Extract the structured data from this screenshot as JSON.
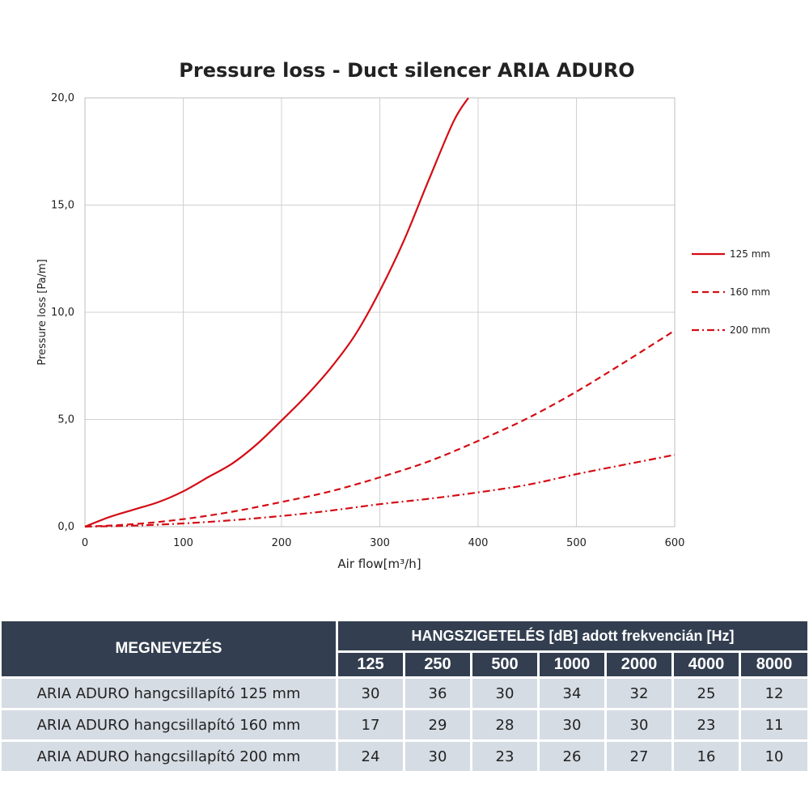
{
  "chart_data": {
    "type": "line",
    "title": "Pressure loss - Duct silencer ARIA ADURO",
    "xlabel": "Air flow[m³/h]",
    "ylabel": "Pressure loss [Pa/m]",
    "xlim": [
      0,
      600
    ],
    "ylim": [
      0,
      20
    ],
    "x_ticks": [
      "0",
      "100",
      "200",
      "300",
      "400",
      "500",
      "600"
    ],
    "y_ticks": [
      "0,0",
      "5,0",
      "10,0",
      "15,0",
      "20,0"
    ],
    "grid": true,
    "legend_position": "right",
    "series": [
      {
        "name": "125 mm",
        "style": "solid",
        "color": "#d40c14",
        "points": [
          [
            0,
            0
          ],
          [
            25,
            0.45
          ],
          [
            50,
            0.8
          ],
          [
            75,
            1.15
          ],
          [
            100,
            1.65
          ],
          [
            125,
            2.3
          ],
          [
            150,
            2.95
          ],
          [
            175,
            3.85
          ],
          [
            200,
            4.95
          ],
          [
            225,
            6.1
          ],
          [
            250,
            7.4
          ],
          [
            275,
            8.95
          ],
          [
            300,
            11.0
          ],
          [
            325,
            13.4
          ],
          [
            350,
            16.2
          ],
          [
            375,
            18.9
          ],
          [
            390,
            20.0
          ]
        ]
      },
      {
        "name": "160 mm",
        "style": "dashed",
        "color": "#d40c14",
        "points": [
          [
            0,
            0
          ],
          [
            50,
            0.12
          ],
          [
            100,
            0.35
          ],
          [
            150,
            0.7
          ],
          [
            200,
            1.15
          ],
          [
            250,
            1.65
          ],
          [
            300,
            2.3
          ],
          [
            350,
            3.05
          ],
          [
            400,
            4.0
          ],
          [
            450,
            5.05
          ],
          [
            500,
            6.3
          ],
          [
            550,
            7.7
          ],
          [
            600,
            9.15
          ]
        ]
      },
      {
        "name": "200 mm",
        "style": "dashdot",
        "color": "#d40c14",
        "points": [
          [
            0,
            0
          ],
          [
            50,
            0.05
          ],
          [
            100,
            0.15
          ],
          [
            150,
            0.3
          ],
          [
            200,
            0.5
          ],
          [
            250,
            0.75
          ],
          [
            300,
            1.05
          ],
          [
            350,
            1.3
          ],
          [
            400,
            1.6
          ],
          [
            450,
            1.95
          ],
          [
            500,
            2.45
          ],
          [
            550,
            2.9
          ],
          [
            600,
            3.35
          ]
        ]
      }
    ]
  },
  "table": {
    "name_header": "MEGNEVEZÉS",
    "main_header": "HANGSZIGETELÉS [dB] adott frekvencián [Hz]",
    "frequencies": [
      "125",
      "250",
      "500",
      "1000",
      "2000",
      "4000",
      "8000"
    ],
    "rows": [
      {
        "name": "ARIA ADURO hangcsillapító 125 mm",
        "values": [
          "30",
          "36",
          "30",
          "34",
          "32",
          "25",
          "12"
        ]
      },
      {
        "name": "ARIA ADURO hangcsillapító 160 mm",
        "values": [
          "17",
          "29",
          "28",
          "30",
          "30",
          "23",
          "11"
        ]
      },
      {
        "name": "ARIA ADURO hangcsillapító 200 mm",
        "values": [
          "24",
          "30",
          "23",
          "26",
          "27",
          "16",
          "10"
        ]
      }
    ]
  },
  "colors": {
    "line": "#d40c14",
    "header_bg": "#333f50",
    "row_bg": "#d6dce4",
    "grid": "#d0d0d0"
  }
}
